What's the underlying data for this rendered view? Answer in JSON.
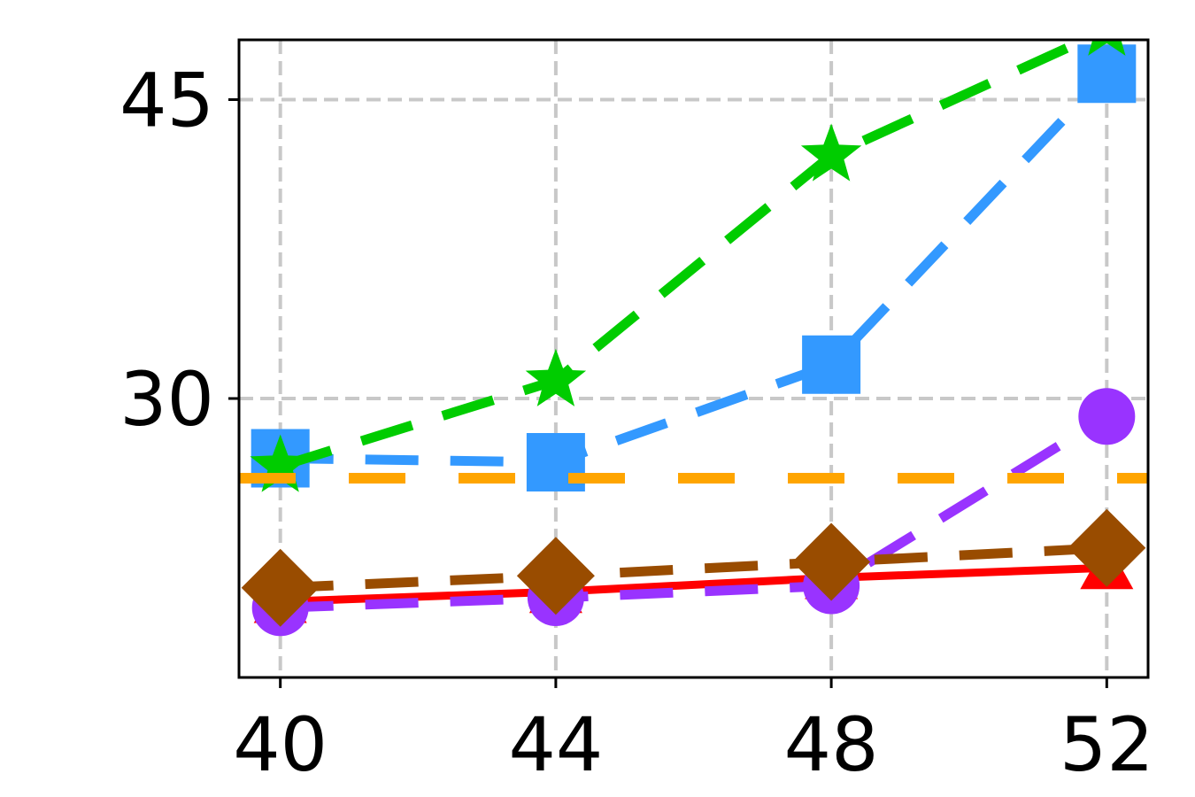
{
  "chart_data": {
    "type": "line",
    "title": "",
    "xlabel": "",
    "ylabel": "",
    "x": [
      40,
      44,
      48,
      52
    ],
    "x_tick_labels": [
      "40",
      "44",
      "48",
      "52"
    ],
    "y_tick_values": [
      30,
      45
    ],
    "y_tick_labels": [
      "30",
      "45"
    ],
    "xlim": [
      39.4,
      52.6
    ],
    "ylim": [
      16,
      48
    ],
    "grid": true,
    "legend": "none",
    "series": [
      {
        "color": "#ff0000",
        "marker": "triangle",
        "line": "solid",
        "values": [
          19.8,
          20.3,
          21.0,
          21.5
        ]
      },
      {
        "color": "#9933ff",
        "marker": "circle",
        "line": "dashed",
        "values": [
          19.5,
          20.0,
          20.6,
          29.1
        ]
      },
      {
        "color": "#994c00",
        "marker": "diamond",
        "line": "dashed",
        "values": [
          20.5,
          21.1,
          21.8,
          22.5
        ]
      },
      {
        "color": "#3399ff",
        "marker": "square",
        "line": "dashed",
        "values": [
          27.0,
          26.8,
          31.7,
          46.3
        ]
      },
      {
        "color": "#00cc00",
        "marker": "star",
        "line": "dashed",
        "values": [
          26.6,
          30.9,
          42.2,
          48.5
        ]
      },
      {
        "color": "#ffa500",
        "marker": "none",
        "line": "dashed",
        "values": [
          26.0,
          26.0,
          26.0,
          26.0
        ]
      }
    ]
  }
}
